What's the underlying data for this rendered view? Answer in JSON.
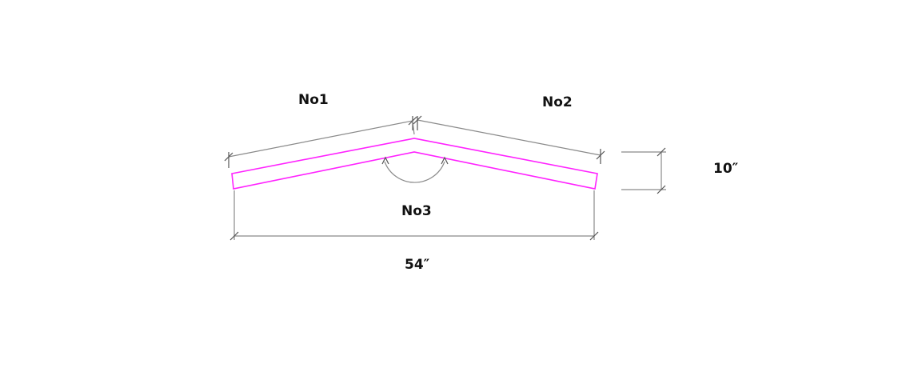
{
  "labels": {
    "no1": "No1",
    "no2": "No2",
    "no3": "No3",
    "length": "54″",
    "depth": "10″"
  },
  "colors": {
    "part_outline": "#ff22ff",
    "dimension_line": "#8a8a8a",
    "text": "#111111",
    "background": "#ffffff"
  }
}
